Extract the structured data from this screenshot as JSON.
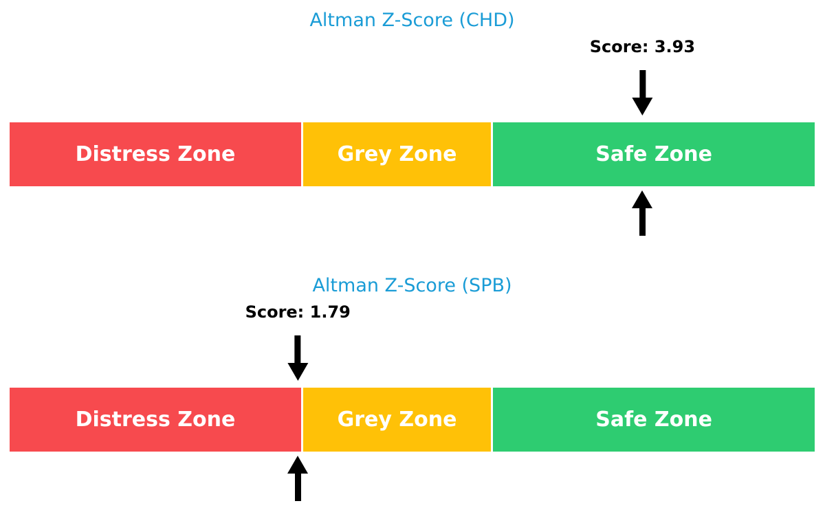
{
  "colors": {
    "title": "#1a9cd6",
    "distress_zone": "#f74a4e",
    "grey_zone": "#ffc107",
    "safe_zone": "#2ecc71",
    "arrow": "#000000",
    "zone_text": "#ffffff",
    "background": "#ffffff"
  },
  "chart_data": [
    {
      "type": "bar",
      "title": "Altman Z-Score (CHD)",
      "score": 3.93,
      "score_label": "Score: 3.93",
      "axis_range": [
        0,
        5
      ],
      "legend_position": "none",
      "grid": false,
      "zones": [
        {
          "label": "Distress Zone",
          "from": 0,
          "to": 1.81,
          "color": "#f74a4e"
        },
        {
          "label": "Grey Zone",
          "from": 1.81,
          "to": 2.99,
          "color": "#ffc107"
        },
        {
          "label": "Safe Zone",
          "from": 2.99,
          "to": 5,
          "color": "#2ecc71"
        }
      ],
      "annotations": [
        {
          "text": "Score: 3.93",
          "x": 3.93,
          "marker": "down-and-up-arrows"
        }
      ]
    },
    {
      "type": "bar",
      "title": "Altman Z-Score (SPB)",
      "score": 1.79,
      "score_label": "Score: 1.79",
      "axis_range": [
        0,
        5
      ],
      "legend_position": "none",
      "grid": false,
      "zones": [
        {
          "label": "Distress Zone",
          "from": 0,
          "to": 1.81,
          "color": "#f74a4e"
        },
        {
          "label": "Grey Zone",
          "from": 1.81,
          "to": 2.99,
          "color": "#ffc107"
        },
        {
          "label": "Safe Zone",
          "from": 2.99,
          "to": 5,
          "color": "#2ecc71"
        }
      ],
      "annotations": [
        {
          "text": "Score: 1.79",
          "x": 1.79,
          "marker": "down-and-up-arrows"
        }
      ]
    }
  ]
}
